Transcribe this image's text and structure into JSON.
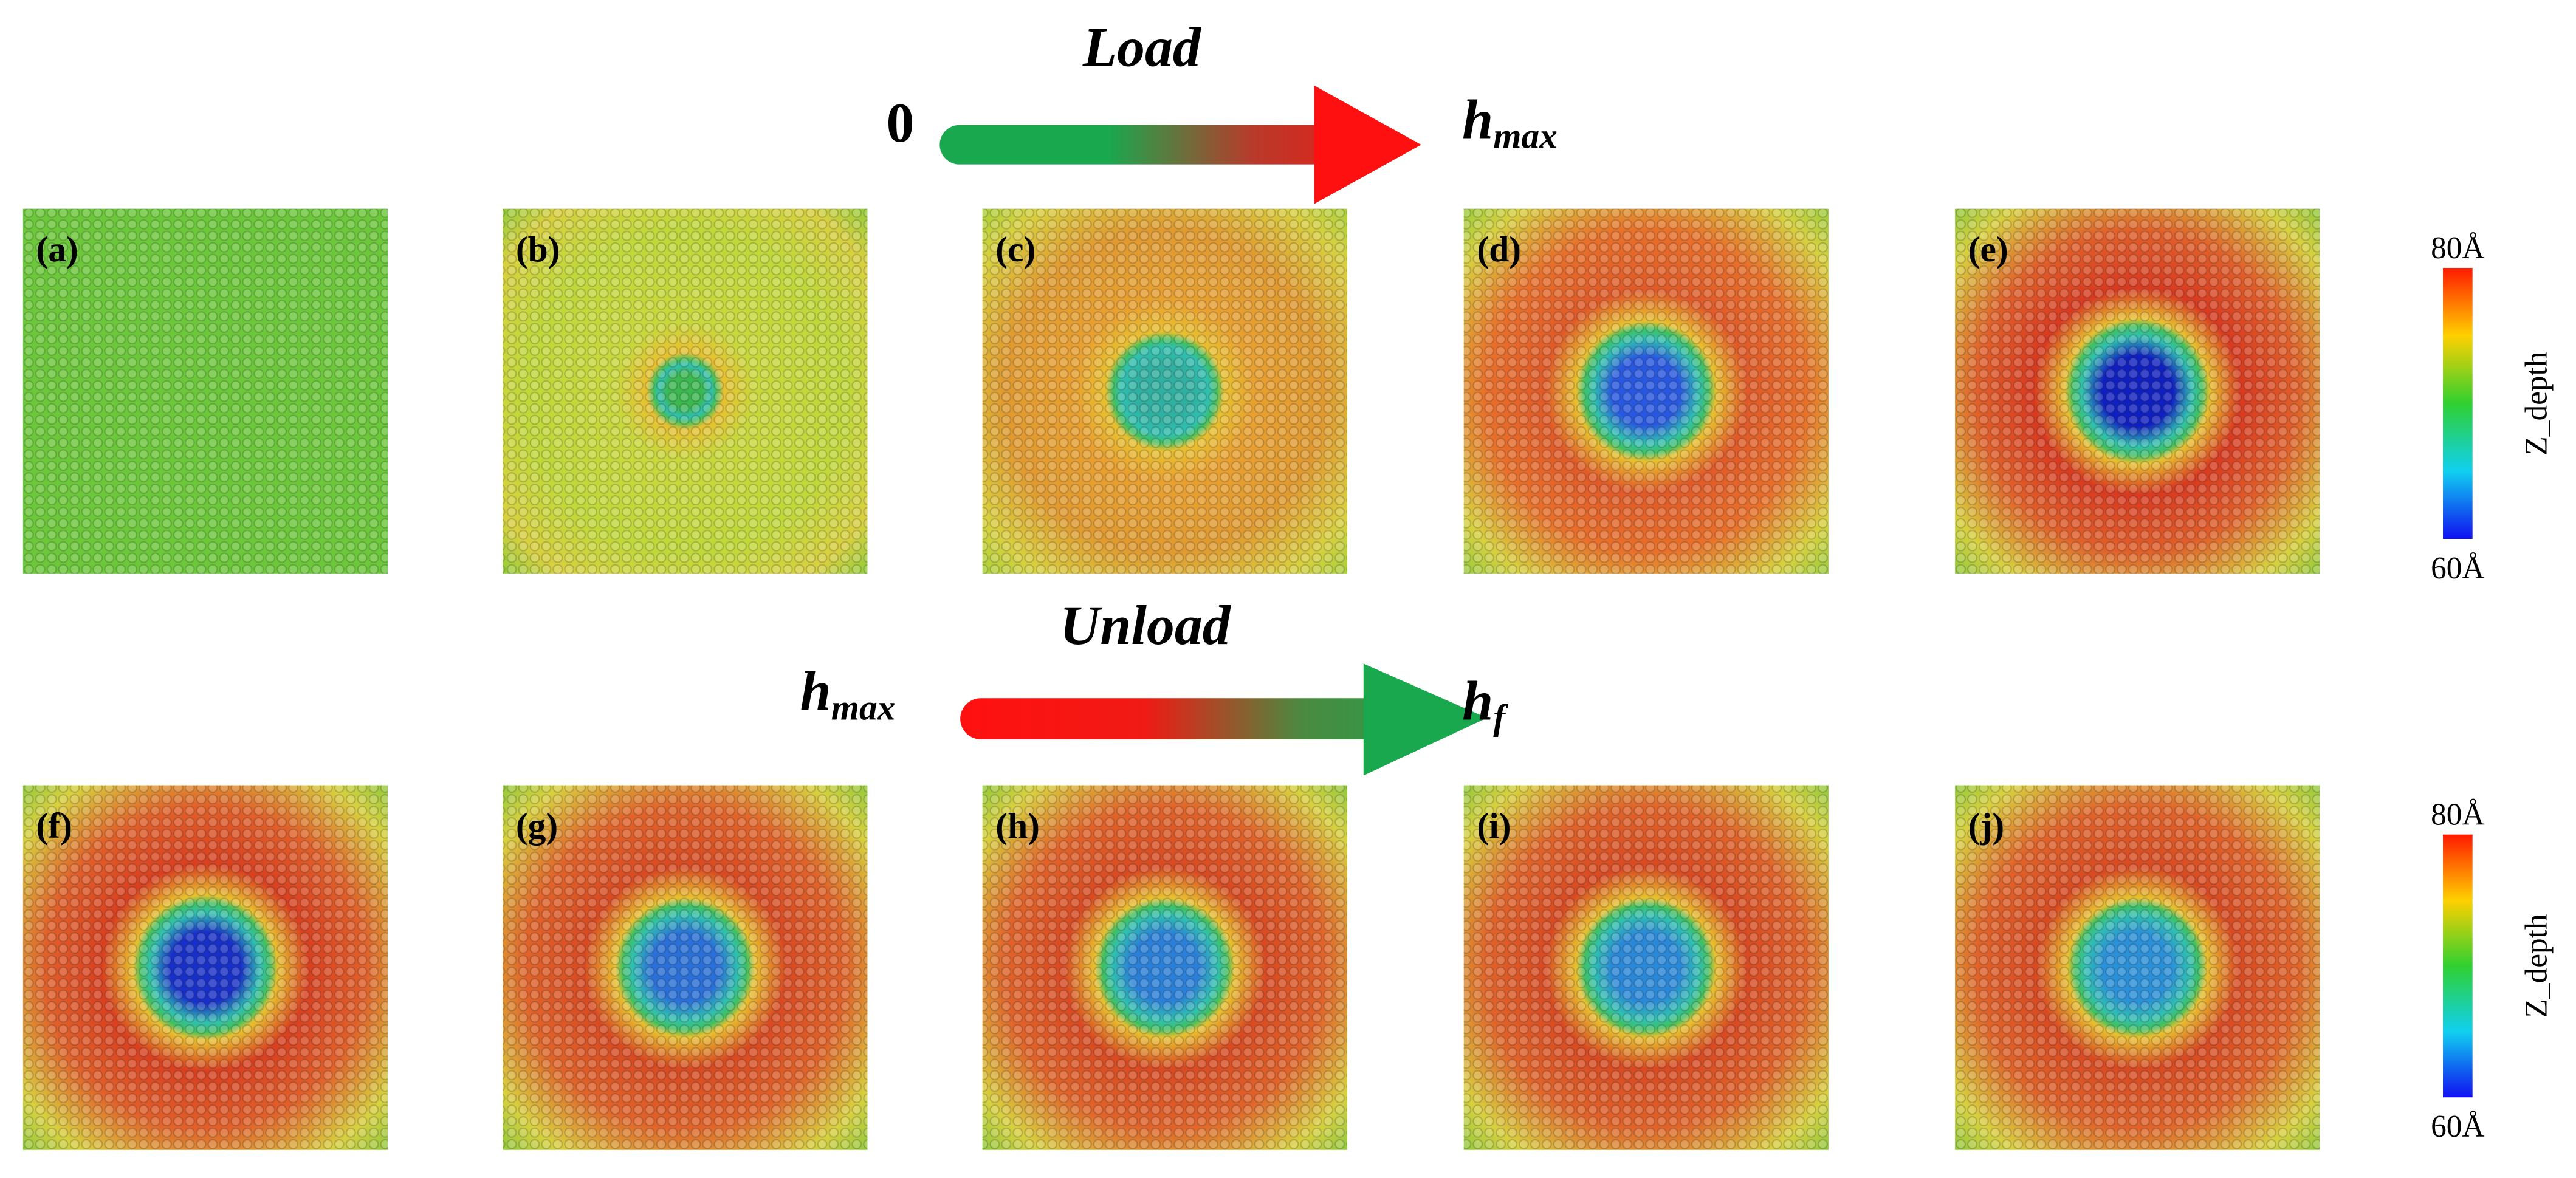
{
  "load": {
    "title": "Load",
    "start": "0",
    "end": {
      "base": "h",
      "sub": "max"
    }
  },
  "unload": {
    "title": "Unload",
    "start": {
      "base": "h",
      "sub": "max"
    },
    "end": {
      "base": "h",
      "sub": "f"
    }
  },
  "rows": [
    {
      "panels": [
        "(a)",
        "(b)",
        "(c)",
        "(d)",
        "(e)"
      ],
      "colorbar": {
        "top": "80Å",
        "bottom": "60Å",
        "title": "Z_depth"
      }
    },
    {
      "panels": [
        "(f)",
        "(g)",
        "(h)",
        "(i)",
        "(j)"
      ],
      "colorbar": {
        "top": "80Å",
        "bottom": "60Å",
        "title": "Z_depth"
      }
    }
  ]
}
